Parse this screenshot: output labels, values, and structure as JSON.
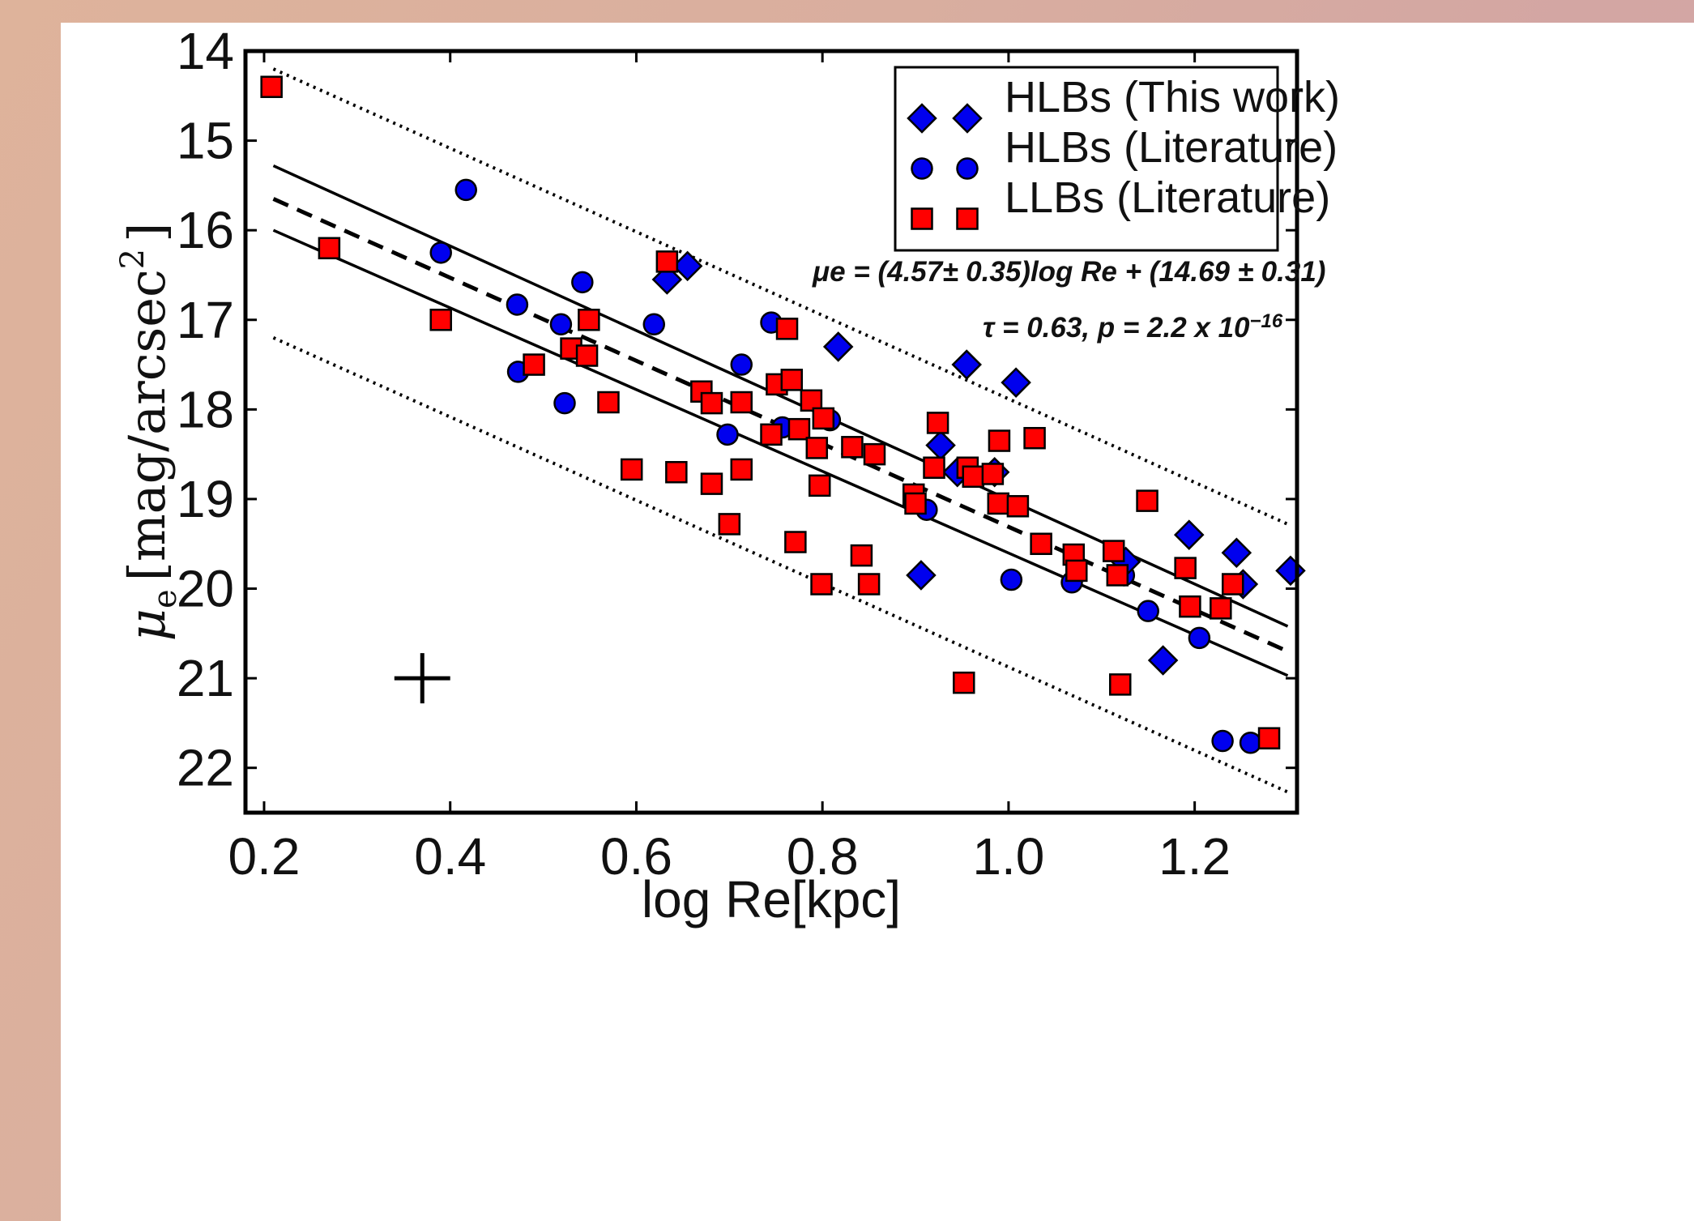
{
  "chart_data": {
    "type": "scatter",
    "xlabel": "log Re[kpc]",
    "ylabel_symbol": "μ",
    "ylabel_sub": "e",
    "ylabel_units": "[mag/arcsec",
    "ylabel_exp": "2",
    "ylabel_close": "]",
    "xlim": [
      0.18,
      1.31
    ],
    "ylim": [
      22.5,
      14.0
    ],
    "y_inverted": true,
    "x_ticks": [
      0.2,
      0.4,
      0.6,
      0.8,
      1.0,
      1.2
    ],
    "x_tick_labels": [
      "0.2",
      "0.4",
      "0.6",
      "0.8",
      "1.0",
      "1.2"
    ],
    "y_ticks": [
      14,
      15,
      16,
      17,
      18,
      19,
      20,
      21,
      22
    ],
    "y_tick_labels": [
      "14",
      "15",
      "16",
      "17",
      "18",
      "19",
      "20",
      "21",
      "22"
    ],
    "legend_position": "top-right",
    "colors": {
      "hlb": "#0000ee",
      "llb": "#ff0000",
      "edge": "#000000"
    },
    "annotations": {
      "fit": "μe = (4.57± 0.35)log Re + (14.69 ± 0.31)",
      "stats_prefix": "τ = 0.63, p = 2.2 x 10",
      "stats_exp": "−16"
    },
    "error_bar": {
      "x": 0.37,
      "y": 21.0,
      "dx": 0.03,
      "dy": 0.28
    },
    "lines": [
      {
        "style": "dashed",
        "x": [
          0.21,
          1.3
        ],
        "y": [
          15.65,
          20.7
        ]
      },
      {
        "style": "solid",
        "x": [
          0.21,
          1.3
        ],
        "y": [
          15.28,
          20.42
        ]
      },
      {
        "style": "solid",
        "x": [
          0.21,
          1.3
        ],
        "y": [
          16.0,
          20.97
        ]
      },
      {
        "style": "dotted",
        "x": [
          0.21,
          1.3
        ],
        "y": [
          14.2,
          19.28
        ]
      },
      {
        "style": "dotted",
        "x": [
          0.21,
          1.3
        ],
        "y": [
          17.2,
          22.27
        ]
      }
    ],
    "series": [
      {
        "name": "HLBs (This work)",
        "marker": "diamond",
        "x": [
          0.633,
          0.655,
          0.817,
          0.906,
          0.927,
          0.955,
          0.945,
          0.985,
          1.008,
          1.126,
          1.166,
          1.194,
          1.245,
          1.252,
          1.303
        ],
        "y": [
          16.55,
          16.4,
          17.3,
          19.85,
          18.4,
          17.5,
          18.7,
          18.7,
          17.7,
          19.7,
          20.8,
          19.4,
          19.6,
          19.95,
          19.8
        ]
      },
      {
        "name": "HLBs (Literature)",
        "marker": "circle",
        "x": [
          0.39,
          0.417,
          0.472,
          0.473,
          0.519,
          0.523,
          0.542,
          0.619,
          0.698,
          0.713,
          0.745,
          0.757,
          0.808,
          0.912,
          0.959,
          1.003,
          1.068,
          1.124,
          1.15,
          1.205,
          1.23,
          1.26
        ],
        "y": [
          16.25,
          15.55,
          16.83,
          17.58,
          17.05,
          17.93,
          16.58,
          17.05,
          18.28,
          17.5,
          17.03,
          18.2,
          18.12,
          19.12,
          18.72,
          19.9,
          19.93,
          19.85,
          20.25,
          20.55,
          21.7,
          21.72
        ]
      },
      {
        "name": "LLBs (Literature)",
        "marker": "square",
        "x": [
          0.208,
          0.27,
          0.39,
          0.49,
          0.53,
          0.547,
          0.549,
          0.57,
          0.595,
          0.643,
          0.633,
          0.67,
          0.681,
          0.681,
          0.7,
          0.713,
          0.713,
          0.745,
          0.751,
          0.767,
          0.762,
          0.771,
          0.775,
          0.788,
          0.794,
          0.797,
          0.801,
          0.799,
          0.832,
          0.842,
          0.85,
          0.856,
          0.898,
          0.9,
          0.92,
          0.924,
          0.952,
          0.956,
          0.962,
          0.983,
          0.989,
          0.99,
          1.01,
          1.028,
          1.035,
          1.07,
          1.073,
          1.113,
          1.117,
          1.12,
          1.149,
          1.19,
          1.195,
          1.228,
          1.241,
          1.28
        ],
        "y": [
          14.4,
          16.2,
          17.0,
          17.5,
          17.32,
          17.4,
          17.0,
          17.92,
          18.67,
          18.7,
          16.35,
          17.8,
          17.93,
          18.83,
          19.28,
          17.92,
          18.67,
          18.28,
          17.72,
          17.67,
          17.1,
          19.48,
          18.22,
          17.9,
          18.43,
          18.85,
          18.1,
          19.95,
          18.42,
          19.63,
          19.95,
          18.5,
          18.95,
          19.05,
          18.65,
          18.15,
          21.05,
          18.65,
          18.75,
          18.72,
          19.05,
          18.35,
          19.08,
          18.32,
          19.5,
          19.62,
          19.8,
          19.58,
          19.85,
          21.07,
          19.02,
          19.77,
          20.2,
          20.22,
          19.95,
          21.67
        ]
      }
    ]
  }
}
